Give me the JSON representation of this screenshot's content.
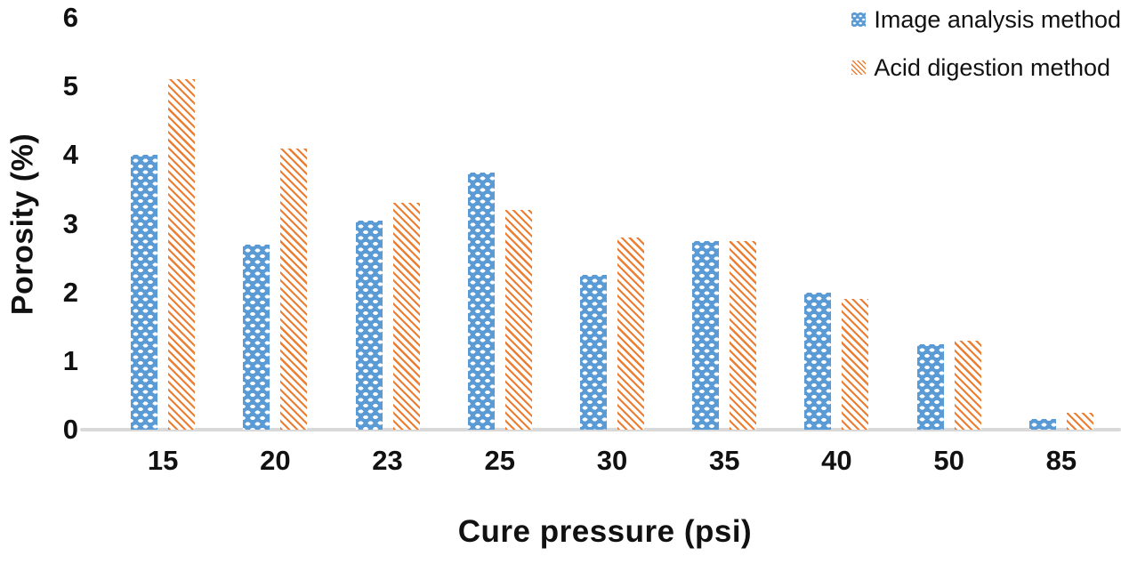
{
  "chart_data": {
    "type": "bar",
    "title": "",
    "categories": [
      "15",
      "20",
      "23",
      "25",
      "30",
      "35",
      "40",
      "50",
      "85"
    ],
    "series": [
      {
        "name": "Image analysis method",
        "color": "#5B9BD5",
        "pattern": "white-dots-on-blue",
        "values": [
          4.0,
          2.7,
          3.05,
          3.75,
          2.25,
          2.75,
          2.0,
          1.25,
          0.15
        ]
      },
      {
        "name": "Acid digestion method",
        "color": "#ED7D31",
        "pattern": "orange-diagonal-stripes-on-white",
        "values": [
          5.1,
          4.1,
          3.3,
          3.2,
          2.8,
          2.75,
          1.9,
          1.3,
          0.25
        ]
      }
    ],
    "xlabel": "Cure pressure (psi)",
    "ylabel": "Porosity (%)",
    "ylim": [
      0,
      6
    ],
    "yticks": [
      0,
      1,
      2,
      3,
      4,
      5,
      6
    ],
    "grid": false,
    "legend_position": "top-right",
    "axis_line_color": "#D9D9D9",
    "text_color": "#111111",
    "background_color": "#FFFFFF"
  }
}
